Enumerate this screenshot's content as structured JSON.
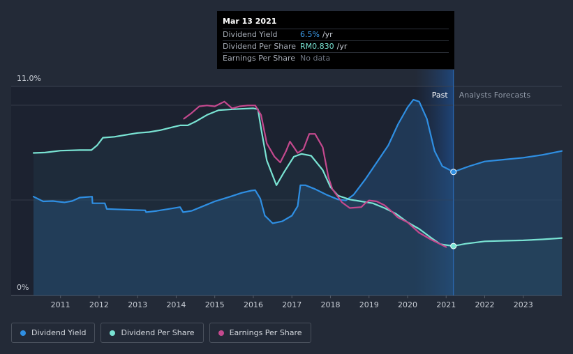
{
  "tooltip": {
    "date": "Mar 13 2021",
    "rows": [
      {
        "label": "Dividend Yield",
        "value": "6.5%",
        "unit": "/yr"
      },
      {
        "label": "Dividend Per Share",
        "value": "RM0.830",
        "unit": "/yr"
      },
      {
        "label": "Earnings Per Share",
        "value": "No data",
        "unit": ""
      }
    ]
  },
  "regions": {
    "past": "Past",
    "forecast": "Analysts Forecasts"
  },
  "legend": [
    "Dividend Yield",
    "Dividend Per Share",
    "Earnings Per Share"
  ],
  "colors": {
    "yield": "#2f8fe3",
    "dps": "#79e3d3",
    "eps": "#c4498e",
    "background": "#232a37"
  },
  "chart_data": {
    "type": "line",
    "y_axis": {
      "labels": [
        "11.0%",
        "0%"
      ],
      "ylim": [
        0,
        11.0
      ]
    },
    "x_axis": {
      "ticks": [
        "2011",
        "2012",
        "2013",
        "2014",
        "2015",
        "2016",
        "2017",
        "2018",
        "2019",
        "2020",
        "2021",
        "2022",
        "2023"
      ],
      "xlim": [
        2010.3,
        2024.0
      ]
    },
    "past_forecast_divider": 2021.19,
    "series": [
      {
        "name": "Dividend Yield",
        "color": "#2f8fe3",
        "filled": true,
        "marker": {
          "x": 2021.19,
          "y": 6.5
        },
        "points": [
          [
            2010.3,
            5.2
          ],
          [
            2010.55,
            4.95
          ],
          [
            2010.8,
            4.97
          ],
          [
            2011.1,
            4.9
          ],
          [
            2011.3,
            4.97
          ],
          [
            2011.5,
            5.15
          ],
          [
            2011.82,
            5.2
          ],
          [
            2011.83,
            4.85
          ],
          [
            2012.15,
            4.85
          ],
          [
            2012.2,
            4.55
          ],
          [
            2012.6,
            4.52
          ],
          [
            2012.9,
            4.5
          ],
          [
            2013.2,
            4.48
          ],
          [
            2013.22,
            4.38
          ],
          [
            2013.5,
            4.45
          ],
          [
            2013.8,
            4.55
          ],
          [
            2014.1,
            4.65
          ],
          [
            2014.18,
            4.38
          ],
          [
            2014.4,
            4.45
          ],
          [
            2014.7,
            4.7
          ],
          [
            2015.0,
            4.95
          ],
          [
            2015.4,
            5.2
          ],
          [
            2015.7,
            5.4
          ],
          [
            2015.95,
            5.52
          ],
          [
            2016.05,
            5.54
          ],
          [
            2016.18,
            5.1
          ],
          [
            2016.3,
            4.2
          ],
          [
            2016.5,
            3.8
          ],
          [
            2016.75,
            3.9
          ],
          [
            2017.0,
            4.2
          ],
          [
            2017.15,
            4.7
          ],
          [
            2017.22,
            5.8
          ],
          [
            2017.35,
            5.8
          ],
          [
            2017.6,
            5.6
          ],
          [
            2017.9,
            5.3
          ],
          [
            2018.2,
            5.05
          ],
          [
            2018.4,
            5.0
          ],
          [
            2018.6,
            5.3
          ],
          [
            2018.9,
            6.1
          ],
          [
            2019.2,
            7.0
          ],
          [
            2019.5,
            7.9
          ],
          [
            2019.75,
            9.0
          ],
          [
            2020.0,
            9.9
          ],
          [
            2020.15,
            10.3
          ],
          [
            2020.3,
            10.2
          ],
          [
            2020.5,
            9.3
          ],
          [
            2020.7,
            7.6
          ],
          [
            2020.9,
            6.8
          ],
          [
            2021.19,
            6.5
          ],
          [
            2021.6,
            6.8
          ],
          [
            2022.0,
            7.05
          ],
          [
            2022.5,
            7.15
          ],
          [
            2023.0,
            7.25
          ],
          [
            2023.5,
            7.4
          ],
          [
            2024.0,
            7.6
          ]
        ]
      },
      {
        "name": "Dividend Per Share",
        "color": "#79e3d3",
        "filled": true,
        "marker": {
          "x": 2021.19,
          "y": 2.6
        },
        "points": [
          [
            2010.3,
            7.5
          ],
          [
            2010.6,
            7.52
          ],
          [
            2011.0,
            7.62
          ],
          [
            2011.5,
            7.65
          ],
          [
            2011.8,
            7.65
          ],
          [
            2011.95,
            7.9
          ],
          [
            2012.1,
            8.3
          ],
          [
            2012.4,
            8.35
          ],
          [
            2012.7,
            8.45
          ],
          [
            2013.0,
            8.55
          ],
          [
            2013.3,
            8.6
          ],
          [
            2013.6,
            8.7
          ],
          [
            2013.9,
            8.85
          ],
          [
            2014.1,
            8.95
          ],
          [
            2014.3,
            8.95
          ],
          [
            2014.5,
            9.15
          ],
          [
            2014.8,
            9.5
          ],
          [
            2015.1,
            9.75
          ],
          [
            2015.5,
            9.8
          ],
          [
            2016.0,
            9.85
          ],
          [
            2016.12,
            9.8
          ],
          [
            2016.2,
            8.8
          ],
          [
            2016.35,
            7.1
          ],
          [
            2016.6,
            5.8
          ],
          [
            2016.8,
            6.5
          ],
          [
            2017.05,
            7.3
          ],
          [
            2017.25,
            7.45
          ],
          [
            2017.5,
            7.35
          ],
          [
            2017.8,
            6.6
          ],
          [
            2018.0,
            5.7
          ],
          [
            2018.2,
            5.25
          ],
          [
            2018.5,
            5.05
          ],
          [
            2018.8,
            4.95
          ],
          [
            2019.1,
            4.85
          ],
          [
            2019.4,
            4.6
          ],
          [
            2019.7,
            4.3
          ],
          [
            2020.0,
            3.85
          ],
          [
            2020.3,
            3.5
          ],
          [
            2020.6,
            3.05
          ],
          [
            2020.85,
            2.7
          ],
          [
            2021.19,
            2.6
          ],
          [
            2021.5,
            2.72
          ],
          [
            2022.0,
            2.85
          ],
          [
            2022.5,
            2.88
          ],
          [
            2023.0,
            2.9
          ],
          [
            2023.5,
            2.95
          ],
          [
            2024.0,
            3.02
          ]
        ]
      },
      {
        "name": "Earnings Per Share",
        "color": "#c4498e",
        "filled": false,
        "points": [
          [
            2014.2,
            9.3
          ],
          [
            2014.4,
            9.6
          ],
          [
            2014.6,
            9.95
          ],
          [
            2014.8,
            10.0
          ],
          [
            2015.0,
            9.95
          ],
          [
            2015.15,
            10.1
          ],
          [
            2015.25,
            10.2
          ],
          [
            2015.45,
            9.85
          ],
          [
            2015.65,
            9.95
          ],
          [
            2015.85,
            10.0
          ],
          [
            2016.05,
            10.0
          ],
          [
            2016.2,
            9.5
          ],
          [
            2016.35,
            8.0
          ],
          [
            2016.55,
            7.3
          ],
          [
            2016.7,
            7.0
          ],
          [
            2016.85,
            7.6
          ],
          [
            2016.95,
            8.1
          ],
          [
            2017.05,
            7.8
          ],
          [
            2017.15,
            7.5
          ],
          [
            2017.3,
            7.7
          ],
          [
            2017.45,
            8.5
          ],
          [
            2017.6,
            8.5
          ],
          [
            2017.8,
            7.8
          ],
          [
            2017.95,
            6.2
          ],
          [
            2018.05,
            5.6
          ],
          [
            2018.3,
            4.9
          ],
          [
            2018.5,
            4.6
          ],
          [
            2018.8,
            4.65
          ],
          [
            2018.9,
            4.85
          ],
          [
            2019.0,
            5.0
          ],
          [
            2019.2,
            4.95
          ],
          [
            2019.4,
            4.75
          ],
          [
            2019.6,
            4.4
          ],
          [
            2019.75,
            4.1
          ],
          [
            2020.0,
            3.85
          ],
          [
            2020.3,
            3.3
          ],
          [
            2020.6,
            2.95
          ],
          [
            2020.85,
            2.7
          ],
          [
            2021.0,
            2.55
          ]
        ]
      }
    ]
  }
}
